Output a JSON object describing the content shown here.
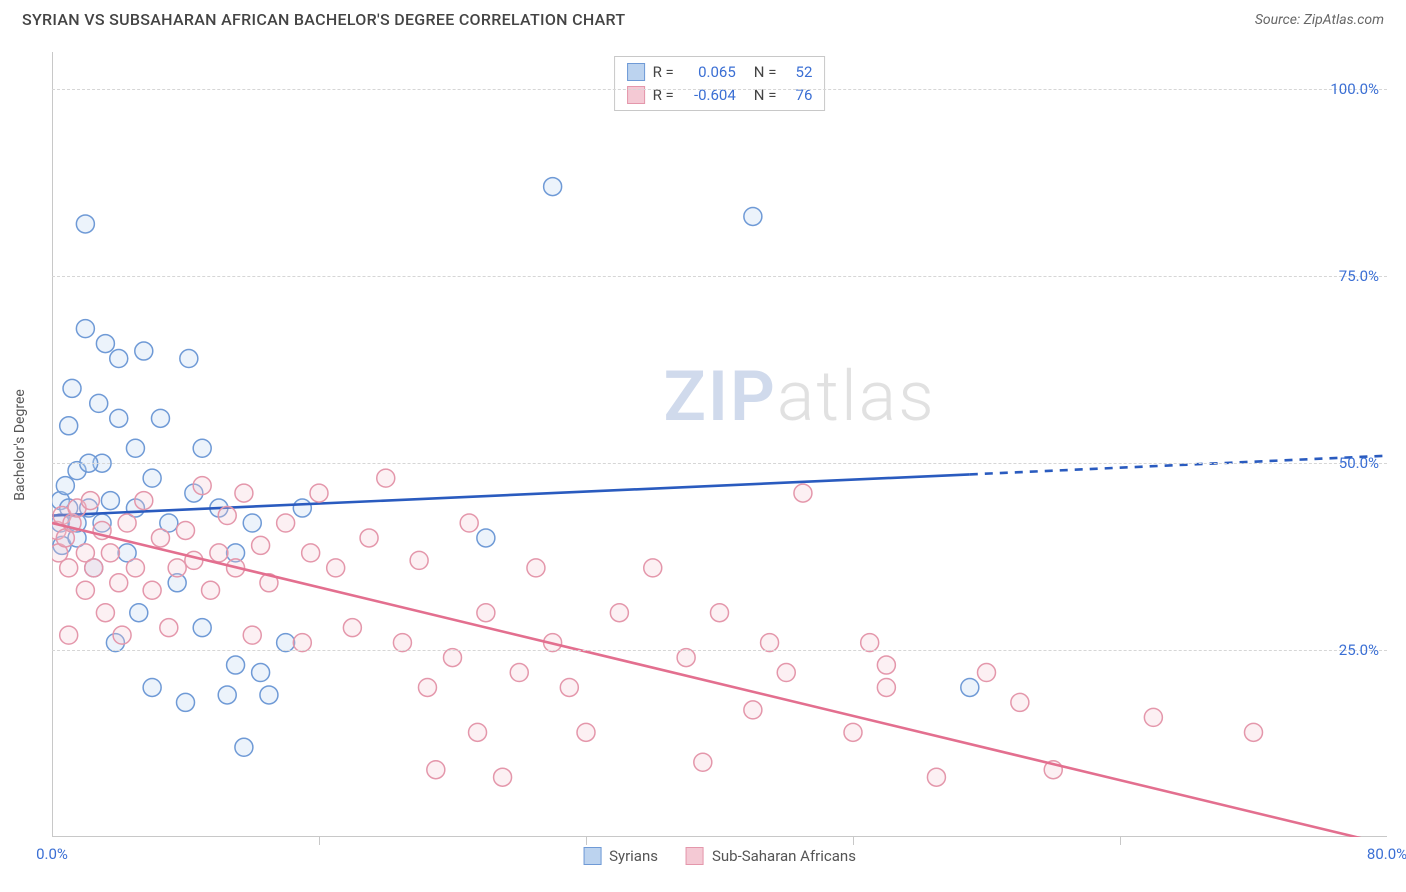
{
  "title": "SYRIAN VS SUBSAHARAN AFRICAN BACHELOR'S DEGREE CORRELATION CHART",
  "source": "Source: ZipAtlas.com",
  "ylabel": "Bachelor's Degree",
  "watermark": {
    "a": "ZIP",
    "b": "atlas"
  },
  "chart": {
    "type": "scatter",
    "background_color": "#ffffff",
    "grid_color": "#d6d6d6",
    "axis_color": "#c8c8c8",
    "tick_color": "#3b6fd4",
    "label_color": "#555555",
    "title_color": "#444444",
    "title_fontsize": 16,
    "tick_fontsize": 15,
    "label_fontsize": 14,
    "xlim": [
      0,
      80
    ],
    "ylim": [
      0,
      105
    ],
    "xticks": [
      {
        "v": 0,
        "l": "0.0%"
      },
      {
        "v": 80,
        "l": "80.0%"
      }
    ],
    "xtick_marks": [
      16,
      32,
      48,
      64
    ],
    "yticks": [
      {
        "v": 25,
        "l": "25.0%"
      },
      {
        "v": 50,
        "l": "50.0%"
      },
      {
        "v": 75,
        "l": "75.0%"
      },
      {
        "v": 100,
        "l": "100.0%"
      }
    ],
    "marker_radius": 9,
    "marker_stroke_width": 1.5,
    "marker_fill_opacity": 0.28,
    "series": [
      {
        "name": "Syrians",
        "color_stroke": "#6f9ad6",
        "color_fill": "#bcd3ef",
        "trend_color": "#2a5bbf",
        "trend_width": 2.6,
        "trend": {
          "x1": 0,
          "y1": 43,
          "x2": 80,
          "y2": 51,
          "solid_until_x": 55
        },
        "R": "0.065",
        "N": "52",
        "points": [
          [
            0.5,
            45
          ],
          [
            0.5,
            42
          ],
          [
            0.6,
            39
          ],
          [
            0.8,
            47
          ],
          [
            1,
            44
          ],
          [
            1,
            55
          ],
          [
            1.2,
            60
          ],
          [
            1.5,
            49
          ],
          [
            1.5,
            40
          ],
          [
            2,
            82
          ],
          [
            2,
            68
          ],
          [
            2.2,
            44
          ],
          [
            2.5,
            36
          ],
          [
            2.8,
            58
          ],
          [
            3,
            50
          ],
          [
            3,
            42
          ],
          [
            3.2,
            66
          ],
          [
            3.5,
            45
          ],
          [
            3.8,
            26
          ],
          [
            4,
            64
          ],
          [
            4,
            56
          ],
          [
            4.5,
            38
          ],
          [
            5,
            52
          ],
          [
            5,
            44
          ],
          [
            5.2,
            30
          ],
          [
            5.5,
            65
          ],
          [
            6,
            48
          ],
          [
            6,
            20
          ],
          [
            6.5,
            56
          ],
          [
            7,
            42
          ],
          [
            7.5,
            34
          ],
          [
            8,
            18
          ],
          [
            8.2,
            64
          ],
          [
            8.5,
            46
          ],
          [
            9,
            52
          ],
          [
            9,
            28
          ],
          [
            10,
            44
          ],
          [
            10.5,
            19
          ],
          [
            11,
            38
          ],
          [
            11,
            23
          ],
          [
            11.5,
            12
          ],
          [
            12,
            42
          ],
          [
            12.5,
            22
          ],
          [
            13,
            19
          ],
          [
            14,
            26
          ],
          [
            15,
            44
          ],
          [
            26,
            40
          ],
          [
            30,
            87
          ],
          [
            42,
            83
          ],
          [
            55,
            20
          ],
          [
            1.5,
            42
          ],
          [
            2.2,
            50
          ]
        ]
      },
      {
        "name": "Sub-Saharan Africans",
        "color_stroke": "#e497ab",
        "color_fill": "#f4c9d4",
        "trend_color": "#e36f8f",
        "trend_width": 2.6,
        "trend": {
          "x1": 0,
          "y1": 42,
          "x2": 80,
          "y2": -1,
          "solid_until_x": 80
        },
        "R": "-0.604",
        "N": "76",
        "points": [
          [
            0.3,
            41
          ],
          [
            0.4,
            38
          ],
          [
            0.6,
            43
          ],
          [
            0.8,
            40
          ],
          [
            1,
            36
          ],
          [
            1,
            27
          ],
          [
            1.2,
            42
          ],
          [
            1.5,
            44
          ],
          [
            2,
            38
          ],
          [
            2,
            33
          ],
          [
            2.3,
            45
          ],
          [
            2.5,
            36
          ],
          [
            3,
            41
          ],
          [
            3.2,
            30
          ],
          [
            3.5,
            38
          ],
          [
            4,
            34
          ],
          [
            4.2,
            27
          ],
          [
            4.5,
            42
          ],
          [
            5,
            36
          ],
          [
            5.5,
            45
          ],
          [
            6,
            33
          ],
          [
            6.5,
            40
          ],
          [
            7,
            28
          ],
          [
            7.5,
            36
          ],
          [
            8,
            41
          ],
          [
            8.5,
            37
          ],
          [
            9,
            47
          ],
          [
            9.5,
            33
          ],
          [
            10,
            38
          ],
          [
            10.5,
            43
          ],
          [
            11,
            36
          ],
          [
            11.5,
            46
          ],
          [
            12,
            27
          ],
          [
            12.5,
            39
          ],
          [
            13,
            34
          ],
          [
            14,
            42
          ],
          [
            15,
            26
          ],
          [
            15.5,
            38
          ],
          [
            16,
            46
          ],
          [
            17,
            36
          ],
          [
            18,
            28
          ],
          [
            19,
            40
          ],
          [
            20,
            48
          ],
          [
            21,
            26
          ],
          [
            22,
            37
          ],
          [
            22.5,
            20
          ],
          [
            23,
            9
          ],
          [
            24,
            24
          ],
          [
            25,
            42
          ],
          [
            25.5,
            14
          ],
          [
            26,
            30
          ],
          [
            27,
            8
          ],
          [
            28,
            22
          ],
          [
            29,
            36
          ],
          [
            30,
            26
          ],
          [
            31,
            20
          ],
          [
            32,
            14
          ],
          [
            34,
            30
          ],
          [
            36,
            36
          ],
          [
            38,
            24
          ],
          [
            39,
            10
          ],
          [
            40,
            30
          ],
          [
            42,
            17
          ],
          [
            43,
            26
          ],
          [
            44,
            22
          ],
          [
            45,
            46
          ],
          [
            48,
            14
          ],
          [
            49,
            26
          ],
          [
            50,
            20
          ],
          [
            50,
            23
          ],
          [
            53,
            8
          ],
          [
            56,
            22
          ],
          [
            58,
            18
          ],
          [
            60,
            9
          ],
          [
            66,
            16
          ],
          [
            72,
            14
          ]
        ]
      }
    ]
  },
  "stats_box_labels": {
    "R": "R =",
    "N": "N ="
  },
  "legend_labels": [
    "Syrians",
    "Sub-Saharan Africans"
  ]
}
